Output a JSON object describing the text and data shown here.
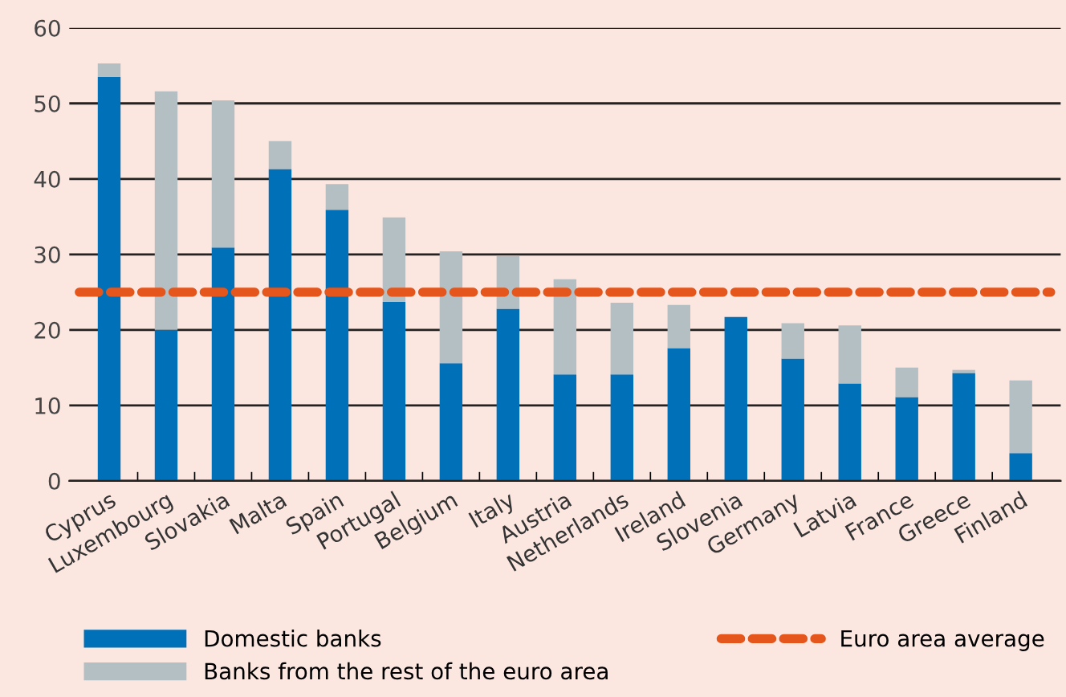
{
  "chart_data": {
    "type": "bar",
    "stacked": true,
    "categories": [
      "Cyprus",
      "Luxembourg",
      "Slovakia",
      "Malta",
      "Spain",
      "Portugal",
      "Belgium",
      "Italy",
      "Austria",
      "Netherlands",
      "Ireland",
      "Slovenia",
      "Germany",
      "Latvia",
      "France",
      "Greece",
      "Finland"
    ],
    "series": [
      {
        "name": "Domestic banks",
        "color": "#0070b8",
        "values": [
          53.5,
          20,
          30.9,
          41.3,
          35.9,
          23.7,
          15.6,
          22.8,
          14.1,
          14.1,
          17.6,
          21.7,
          16.2,
          12.9,
          11.1,
          14.3,
          3.7
        ]
      },
      {
        "name": "Banks from the rest of the euro area",
        "color": "#b3bfc3",
        "values": [
          1.8,
          31.6,
          19.5,
          3.7,
          3.4,
          11.2,
          14.8,
          7.0,
          12.6,
          9.5,
          5.7,
          0,
          4.7,
          7.7,
          3.9,
          0.4,
          9.6
        ]
      }
    ],
    "ref_lines": [
      {
        "axis": "y",
        "value": 25,
        "label": "Euro area average",
        "color": "#e4561b",
        "line_style": "dashed"
      }
    ],
    "ylim": [
      0,
      60
    ],
    "yticks": [
      0,
      10,
      20,
      30,
      40,
      50,
      60
    ],
    "grid": "y",
    "legend": "bottom"
  }
}
